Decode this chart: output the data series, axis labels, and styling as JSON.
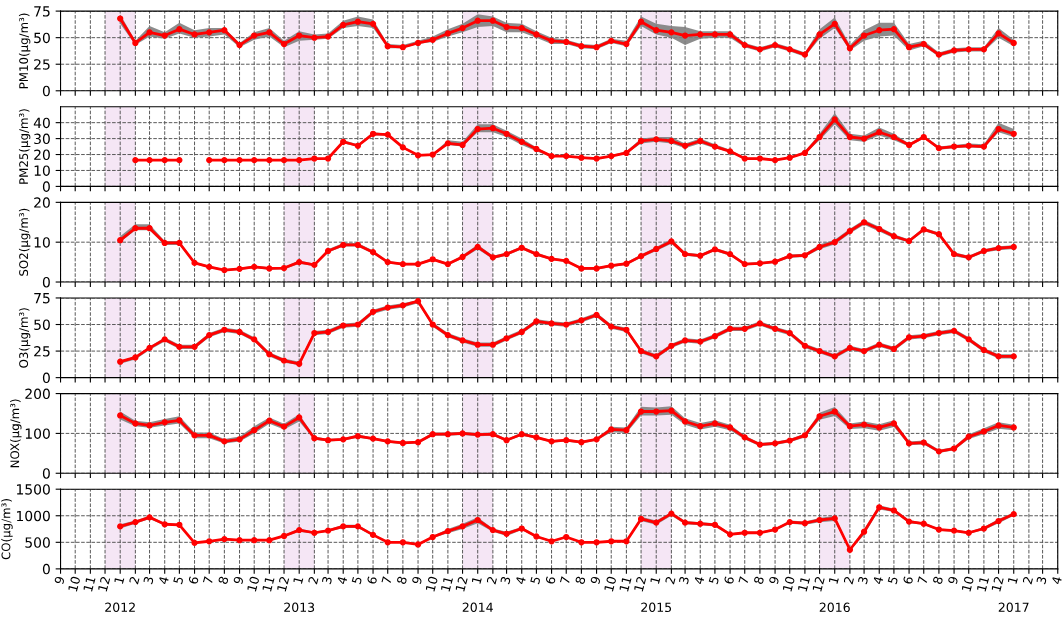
{
  "chart_data": [
    {
      "type": "line",
      "ylabel": "PM10(μg/m³)",
      "ylim": [
        0,
        75
      ],
      "yticks": [
        0,
        25,
        50,
        75
      ],
      "tick_labels": "y",
      "grid": true,
      "marker": "circle",
      "line_style": "solid",
      "xlim": [
        "2011-09",
        "2017-04"
      ],
      "x": [
        "2012-01",
        "2012-02",
        "2012-03",
        "2012-04",
        "2012-05",
        "2012-06",
        "2012-07",
        "2012-08",
        "2012-09",
        "2012-10",
        "2012-11",
        "2012-12",
        "2013-01",
        "2013-02",
        "2013-03",
        "2013-04",
        "2013-05",
        "2013-06",
        "2013-07",
        "2013-08",
        "2013-09",
        "2013-10",
        "2013-11",
        "2013-12",
        "2014-01",
        "2014-02",
        "2014-03",
        "2014-04",
        "2014-05",
        "2014-06",
        "2014-07",
        "2014-08",
        "2014-09",
        "2014-10",
        "2014-11",
        "2014-12",
        "2015-01",
        "2015-02",
        "2015-03",
        "2015-04",
        "2015-05",
        "2015-06",
        "2015-07",
        "2015-08",
        "2015-09",
        "2015-10",
        "2015-11",
        "2015-12",
        "2016-01",
        "2016-02",
        "2016-03",
        "2016-04",
        "2016-05",
        "2016-06",
        "2016-07",
        "2016-08",
        "2016-09",
        "2016-10",
        "2016-11",
        "2016-12",
        "2017-01"
      ],
      "bands": [
        {
          "axis": "x",
          "from": "2011-12",
          "to": "2012-02",
          "color": "#f5e6f5"
        },
        {
          "axis": "x",
          "from": "2012-12",
          "to": "2013-02",
          "color": "#f5e6f5"
        },
        {
          "axis": "x",
          "from": "2013-12",
          "to": "2014-02",
          "color": "#f5e6f5"
        },
        {
          "axis": "x",
          "from": "2014-12",
          "to": "2015-02",
          "color": "#f5e6f5"
        },
        {
          "axis": "x",
          "from": "2015-12",
          "to": "2016-02",
          "color": "#f5e6f5"
        }
      ],
      "series": [
        {
          "color": "#ff0000",
          "values": [
            68,
            45,
            55,
            52,
            58,
            53,
            55,
            57,
            43,
            52,
            55,
            44,
            52,
            50,
            51,
            62,
            65,
            63,
            42,
            41,
            45,
            48,
            54,
            59,
            66,
            66,
            60,
            59,
            53,
            47,
            46,
            42,
            41,
            47,
            44,
            65,
            57,
            55,
            52,
            53,
            53,
            53,
            43,
            39,
            43,
            39,
            34,
            53,
            63,
            40,
            52,
            57,
            58,
            41,
            44,
            34,
            38,
            39,
            39,
            54,
            45
          ],
          "lower": [
            63,
            43,
            51,
            49,
            54,
            50,
            51,
            53,
            41,
            48,
            51,
            41,
            47,
            48,
            49,
            59,
            61,
            59,
            40,
            40,
            44,
            46,
            51,
            55,
            60,
            61,
            55,
            55,
            50,
            44,
            44,
            40,
            39,
            45,
            42,
            61,
            53,
            50,
            43,
            49,
            50,
            50,
            41,
            37,
            41,
            37,
            32,
            49,
            59,
            38,
            47,
            51,
            52,
            38,
            42,
            32,
            36,
            37,
            37,
            50,
            42
          ],
          "upper": [
            72,
            47,
            61,
            55,
            64,
            57,
            59,
            59,
            45,
            55,
            59,
            47,
            56,
            53,
            54,
            66,
            70,
            67,
            44,
            43,
            47,
            51,
            58,
            63,
            72,
            70,
            64,
            63,
            56,
            50,
            48,
            44,
            43,
            49,
            47,
            70,
            63,
            61,
            60,
            56,
            56,
            56,
            45,
            41,
            45,
            41,
            36,
            58,
            69,
            43,
            57,
            64,
            64,
            44,
            47,
            36,
            40,
            41,
            41,
            59,
            48
          ]
        }
      ]
    },
    {
      "type": "line",
      "ylabel": "PM25(μg/m³)",
      "ylim": [
        0,
        50
      ],
      "yticks": [
        0,
        10,
        20,
        30,
        40
      ],
      "tick_labels": "y",
      "grid": true,
      "marker": "circle",
      "line_style": "solid",
      "xlim": [
        "2011-09",
        "2017-04"
      ],
      "bands": [
        {
          "axis": "x",
          "from": "2011-12",
          "to": "2012-02",
          "color": "#f5e6f5"
        },
        {
          "axis": "x",
          "from": "2012-12",
          "to": "2013-02",
          "color": "#f5e6f5"
        },
        {
          "axis": "x",
          "from": "2013-12",
          "to": "2014-02",
          "color": "#f5e6f5"
        },
        {
          "axis": "x",
          "from": "2014-12",
          "to": "2015-02",
          "color": "#f5e6f5"
        },
        {
          "axis": "x",
          "from": "2015-12",
          "to": "2016-02",
          "color": "#f5e6f5"
        }
      ],
      "series": [
        {
          "color": "#ff0000",
          "x": [
            "2012-02",
            "2012-03",
            "2012-04",
            "2012-05",
            "2012-06",
            "2012-07",
            "2012-08",
            "2012-09",
            "2012-10",
            "2012-11",
            "2012-12",
            "2013-01",
            "2013-02",
            "2013-03",
            "2013-04",
            "2013-05",
            "2013-06",
            "2013-07",
            "2013-08",
            "2013-09",
            "2013-10",
            "2013-11",
            "2013-12",
            "2014-01",
            "2014-02",
            "2014-03",
            "2014-04",
            "2014-05",
            "2014-06",
            "2014-07",
            "2014-08",
            "2014-09",
            "2014-10",
            "2014-11",
            "2014-12",
            "2015-01",
            "2015-02",
            "2015-03",
            "2015-04",
            "2015-05",
            "2015-06",
            "2015-07",
            "2015-08",
            "2015-09",
            "2015-10",
            "2015-11",
            "2015-12",
            "2016-01",
            "2016-02",
            "2016-03",
            "2016-04",
            "2016-05",
            "2016-06",
            "2016-07",
            "2016-08",
            "2016-09",
            "2016-10",
            "2016-11",
            "2016-12",
            "2017-01"
          ],
          "values": [
            16.5,
            16.5,
            16.5,
            16.5,
            null,
            16.5,
            16.5,
            16.5,
            16.5,
            16.5,
            16.5,
            16.5,
            17.5,
            17.5,
            28,
            25.5,
            33,
            32.5,
            24.5,
            19.5,
            20,
            27,
            26,
            36,
            36.5,
            33,
            28,
            23.5,
            19,
            19,
            18,
            17.5,
            19,
            21,
            28.5,
            29.5,
            28.5,
            25.5,
            28.5,
            25,
            22,
            17.5,
            17.5,
            16.5,
            18,
            21,
            31,
            42,
            31,
            30,
            34,
            31,
            26,
            31,
            24,
            25,
            25.5,
            25,
            36,
            33
          ],
          "lower": [
            null,
            null,
            null,
            null,
            null,
            null,
            null,
            null,
            null,
            null,
            null,
            null,
            null,
            17,
            27,
            25,
            32,
            32,
            24,
            19,
            19.5,
            26,
            25,
            34,
            34,
            31,
            26,
            22,
            18.5,
            18.5,
            17.5,
            17,
            18.5,
            20.5,
            27,
            28,
            27,
            24,
            27,
            24,
            21.5,
            17,
            17,
            16,
            17.5,
            20.5,
            29,
            39,
            29,
            28,
            32,
            29,
            25,
            30,
            23,
            24,
            24.5,
            24,
            34,
            31
          ],
          "upper": [
            null,
            null,
            null,
            null,
            null,
            null,
            null,
            null,
            null,
            null,
            null,
            null,
            null,
            18,
            29,
            26.5,
            34,
            33,
            25,
            20,
            20.5,
            29,
            28,
            39,
            39,
            35,
            30,
            24.5,
            19.5,
            19.5,
            18.5,
            18,
            19.5,
            22,
            30,
            31,
            31,
            27,
            30,
            26.5,
            23,
            18,
            18,
            17,
            18.5,
            22,
            33,
            46,
            33,
            32,
            37,
            33,
            27,
            32,
            25,
            26,
            27,
            26.5,
            40,
            36
          ]
        }
      ]
    },
    {
      "type": "line",
      "ylabel": "SO2(μg/m³)",
      "ylim": [
        0,
        20
      ],
      "yticks": [
        0,
        10,
        20
      ],
      "tick_labels": "y",
      "grid": true,
      "marker": "circle",
      "line_style": "solid",
      "xlim": [
        "2011-09",
        "2017-04"
      ],
      "x": [
        "2012-01",
        "2012-02",
        "2012-03",
        "2012-04",
        "2012-05",
        "2012-06",
        "2012-07",
        "2012-08",
        "2012-09",
        "2012-10",
        "2012-11",
        "2012-12",
        "2013-01",
        "2013-02",
        "2013-03",
        "2013-04",
        "2013-05",
        "2013-06",
        "2013-07",
        "2013-08",
        "2013-09",
        "2013-10",
        "2013-11",
        "2013-12",
        "2014-01",
        "2014-02",
        "2014-03",
        "2014-04",
        "2014-05",
        "2014-06",
        "2014-07",
        "2014-08",
        "2014-09",
        "2014-10",
        "2014-11",
        "2014-12",
        "2015-01",
        "2015-02",
        "2015-03",
        "2015-04",
        "2015-05",
        "2015-06",
        "2015-07",
        "2015-08",
        "2015-09",
        "2015-10",
        "2015-11",
        "2015-12",
        "2016-01",
        "2016-02",
        "2016-03",
        "2016-04",
        "2016-05",
        "2016-06",
        "2016-07",
        "2016-08",
        "2016-09",
        "2016-10",
        "2016-11",
        "2016-12",
        "2017-01"
      ],
      "bands": [
        {
          "axis": "x",
          "from": "2011-12",
          "to": "2012-02",
          "color": "#f5e6f5"
        },
        {
          "axis": "x",
          "from": "2012-12",
          "to": "2013-02",
          "color": "#f5e6f5"
        },
        {
          "axis": "x",
          "from": "2013-12",
          "to": "2014-02",
          "color": "#f5e6f5"
        },
        {
          "axis": "x",
          "from": "2014-12",
          "to": "2015-02",
          "color": "#f5e6f5"
        },
        {
          "axis": "x",
          "from": "2015-12",
          "to": "2016-02",
          "color": "#f5e6f5"
        }
      ],
      "series": [
        {
          "color": "#ff0000",
          "values": [
            10.5,
            13.5,
            13.5,
            9.8,
            9.8,
            4.8,
            3.8,
            3,
            3.3,
            3.8,
            3.4,
            3.5,
            5,
            4.3,
            7.8,
            9.3,
            9.3,
            7.5,
            5,
            4.5,
            4.5,
            5.7,
            4.5,
            6.3,
            8.8,
            6.2,
            7,
            8.6,
            7,
            5.8,
            5.3,
            3.4,
            3.4,
            4.1,
            4.6,
            6.5,
            8.3,
            10.2,
            7,
            6.6,
            8.2,
            7,
            4.5,
            4.7,
            5.1,
            6.5,
            6.7,
            8.8,
            10,
            12.8,
            15,
            13.3,
            11.5,
            10.3,
            13.2,
            12,
            7,
            6.2,
            7.8,
            8.5,
            8.8
          ],
          "lower": [
            10,
            13,
            13,
            9.3,
            9.3,
            4.5,
            3.5,
            2.8,
            3,
            3.5,
            3.1,
            3.2,
            4.6,
            4,
            7.4,
            8.9,
            8.9,
            7.1,
            4.7,
            4.2,
            4.2,
            5.4,
            4.2,
            5.9,
            8.2,
            5.8,
            6.6,
            8.2,
            6.6,
            5.5,
            5,
            3.1,
            3.1,
            3.8,
            4.3,
            6.1,
            7.8,
            9.6,
            6.6,
            6.2,
            7.8,
            6.6,
            4.2,
            4.4,
            4.8,
            6.1,
            6.3,
            8.2,
            9.4,
            12.2,
            14.4,
            12.7,
            11,
            9.9,
            12.8,
            11.6,
            6.5,
            5.8,
            7.4,
            8,
            8.3
          ],
          "upper": [
            11.5,
            14.5,
            14.5,
            10.3,
            10.3,
            5.1,
            4.1,
            3.2,
            3.6,
            4.1,
            3.7,
            3.8,
            5.4,
            4.6,
            8.2,
            9.8,
            9.8,
            7.9,
            5.3,
            4.8,
            4.8,
            6,
            4.8,
            6.7,
            9.4,
            6.6,
            7.4,
            9,
            7.4,
            6.1,
            5.6,
            3.7,
            3.7,
            4.4,
            4.9,
            6.9,
            8.8,
            10.8,
            7.4,
            7,
            8.6,
            7.4,
            4.8,
            5,
            5.4,
            6.9,
            7.1,
            9.4,
            10.6,
            13.4,
            15.6,
            13.9,
            12,
            10.7,
            13.6,
            12.4,
            7.5,
            6.6,
            8.2,
            9,
            9.2
          ]
        }
      ]
    },
    {
      "type": "line",
      "ylabel": "O3(μg/m³)",
      "ylim": [
        0,
        75
      ],
      "yticks": [
        0,
        25,
        50,
        75
      ],
      "tick_labels": "y",
      "grid": true,
      "marker": "circle",
      "line_style": "solid",
      "xlim": [
        "2011-09",
        "2017-04"
      ],
      "x": [
        "2012-01",
        "2012-02",
        "2012-03",
        "2012-04",
        "2012-05",
        "2012-06",
        "2012-07",
        "2012-08",
        "2012-09",
        "2012-10",
        "2012-11",
        "2012-12",
        "2013-01",
        "2013-02",
        "2013-03",
        "2013-04",
        "2013-05",
        "2013-06",
        "2013-07",
        "2013-08",
        "2013-09",
        "2013-10",
        "2013-11",
        "2013-12",
        "2014-01",
        "2014-02",
        "2014-03",
        "2014-04",
        "2014-05",
        "2014-06",
        "2014-07",
        "2014-08",
        "2014-09",
        "2014-10",
        "2014-11",
        "2014-12",
        "2015-01",
        "2015-02",
        "2015-03",
        "2015-04",
        "2015-05",
        "2015-06",
        "2015-07",
        "2015-08",
        "2015-09",
        "2015-10",
        "2015-11",
        "2015-12",
        "2016-01",
        "2016-02",
        "2016-03",
        "2016-04",
        "2016-05",
        "2016-06",
        "2016-07",
        "2016-08",
        "2016-09",
        "2016-10",
        "2016-11",
        "2016-12",
        "2017-01"
      ],
      "bands": [
        {
          "axis": "x",
          "from": "2011-12",
          "to": "2012-02",
          "color": "#f5e6f5"
        },
        {
          "axis": "x",
          "from": "2012-12",
          "to": "2013-02",
          "color": "#f5e6f5"
        },
        {
          "axis": "x",
          "from": "2013-12",
          "to": "2014-02",
          "color": "#f5e6f5"
        },
        {
          "axis": "x",
          "from": "2014-12",
          "to": "2015-02",
          "color": "#f5e6f5"
        },
        {
          "axis": "x",
          "from": "2015-12",
          "to": "2016-02",
          "color": "#f5e6f5"
        }
      ],
      "series": [
        {
          "color": "#ff0000",
          "values": [
            15,
            19,
            28,
            36,
            29,
            29,
            40,
            45,
            43,
            36,
            22,
            16,
            13,
            42,
            43,
            49,
            50,
            62,
            66,
            68,
            72,
            50,
            40,
            35,
            31,
            31,
            37,
            43,
            53,
            51,
            50,
            54,
            59,
            48,
            45,
            25,
            20,
            30,
            35,
            34,
            39,
            46,
            46,
            51,
            46,
            42,
            30,
            25,
            20,
            28,
            25,
            31,
            27,
            38,
            39,
            42,
            44,
            36,
            26,
            20,
            20
          ],
          "lower": [
            13,
            17,
            26,
            34,
            27,
            27,
            38,
            43,
            41,
            34,
            20,
            14,
            12,
            40,
            41,
            47,
            48,
            60,
            64,
            66,
            70,
            48,
            38,
            33,
            29,
            29,
            35,
            41,
            51,
            49,
            48,
            52,
            57,
            46,
            43,
            23,
            18,
            28,
            33,
            32,
            37,
            44,
            44,
            49,
            44,
            40,
            28,
            23,
            18,
            26,
            23,
            29,
            25,
            36,
            37,
            40,
            42,
            34,
            24,
            18,
            18
          ],
          "upper": [
            16,
            20,
            29,
            38,
            31,
            31,
            42,
            47,
            45,
            38,
            24,
            18,
            15,
            44,
            45,
            51,
            52,
            64,
            68,
            70,
            73,
            52,
            42,
            37,
            33,
            33,
            39,
            45,
            55,
            53,
            52,
            56,
            61,
            50,
            47,
            27,
            22,
            32,
            37,
            36,
            41,
            48,
            48,
            53,
            48,
            44,
            32,
            27,
            22,
            30,
            27,
            33,
            29,
            40,
            41,
            44,
            46,
            38,
            28,
            22,
            22
          ]
        }
      ]
    },
    {
      "type": "line",
      "ylabel": "NOX(μg/m³)",
      "ylim": [
        0,
        200
      ],
      "yticks": [
        0,
        100,
        200
      ],
      "tick_labels": "y",
      "grid": true,
      "marker": "circle",
      "line_style": "solid",
      "xlim": [
        "2011-09",
        "2017-04"
      ],
      "x": [
        "2012-01",
        "2012-02",
        "2012-03",
        "2012-04",
        "2012-05",
        "2012-06",
        "2012-07",
        "2012-08",
        "2012-09",
        "2012-10",
        "2012-11",
        "2012-12",
        "2013-01",
        "2013-02",
        "2013-03",
        "2013-04",
        "2013-05",
        "2013-06",
        "2013-07",
        "2013-08",
        "2013-09",
        "2013-10",
        "2013-11",
        "2013-12",
        "2014-01",
        "2014-02",
        "2014-03",
        "2014-04",
        "2014-05",
        "2014-06",
        "2014-07",
        "2014-08",
        "2014-09",
        "2014-10",
        "2014-11",
        "2014-12",
        "2015-01",
        "2015-02",
        "2015-03",
        "2015-04",
        "2015-05",
        "2015-06",
        "2015-07",
        "2015-08",
        "2015-09",
        "2015-10",
        "2015-11",
        "2015-12",
        "2016-01",
        "2016-02",
        "2016-03",
        "2016-04",
        "2016-05",
        "2016-06",
        "2016-07",
        "2016-08",
        "2016-09",
        "2016-10",
        "2016-11",
        "2016-12",
        "2017-01"
      ],
      "bands": [
        {
          "axis": "x",
          "from": "2011-12",
          "to": "2012-02",
          "color": "#f5e6f5"
        },
        {
          "axis": "x",
          "from": "2012-12",
          "to": "2013-02",
          "color": "#f5e6f5"
        },
        {
          "axis": "x",
          "from": "2013-12",
          "to": "2014-02",
          "color": "#f5e6f5"
        },
        {
          "axis": "x",
          "from": "2014-12",
          "to": "2015-02",
          "color": "#f5e6f5"
        },
        {
          "axis": "x",
          "from": "2015-12",
          "to": "2016-02",
          "color": "#f5e6f5"
        }
      ],
      "series": [
        {
          "color": "#ff0000",
          "values": [
            145,
            125,
            120,
            128,
            133,
            95,
            95,
            80,
            85,
            108,
            132,
            117,
            140,
            88,
            83,
            85,
            93,
            87,
            80,
            76,
            78,
            98,
            98,
            100,
            97,
            98,
            83,
            98,
            90,
            80,
            83,
            78,
            85,
            110,
            108,
            155,
            155,
            157,
            130,
            118,
            125,
            115,
            90,
            72,
            75,
            82,
            95,
            143,
            155,
            118,
            122,
            115,
            125,
            75,
            77,
            55,
            62,
            92,
            105,
            120,
            115
          ],
          "lower": [
            135,
            118,
            114,
            120,
            125,
            88,
            88,
            75,
            80,
            100,
            124,
            110,
            130,
            84,
            80,
            82,
            89,
            84,
            77,
            73,
            75,
            94,
            94,
            96,
            93,
            94,
            80,
            94,
            87,
            77,
            80,
            75,
            82,
            103,
            101,
            145,
            145,
            147,
            122,
            110,
            117,
            108,
            85,
            68,
            71,
            78,
            90,
            134,
            144,
            111,
            113,
            107,
            116,
            70,
            72,
            51,
            58,
            86,
            98,
            112,
            108
          ],
          "upper": [
            155,
            132,
            128,
            136,
            143,
            102,
            102,
            86,
            92,
            118,
            140,
            124,
            148,
            92,
            86,
            88,
            97,
            90,
            83,
            79,
            81,
            102,
            102,
            104,
            101,
            102,
            86,
            102,
            93,
            83,
            86,
            81,
            88,
            117,
            115,
            167,
            165,
            168,
            138,
            126,
            133,
            122,
            95,
            76,
            79,
            86,
            100,
            152,
            166,
            125,
            130,
            123,
            133,
            80,
            82,
            59,
            66,
            98,
            113,
            128,
            122
          ]
        }
      ]
    },
    {
      "type": "line",
      "ylabel": "CO(μg/m³)",
      "ylim": [
        0,
        1500
      ],
      "yticks": [
        0,
        500,
        1000,
        1500
      ],
      "grid": true,
      "marker": "circle",
      "line_style": "solid",
      "xlim": [
        "2011-09",
        "2017-04"
      ],
      "xticks": [
        {
          "value": "2011-09",
          "label": "9"
        },
        {
          "value": "2011-10",
          "label": "10"
        },
        {
          "value": "2011-11",
          "label": "11"
        },
        {
          "value": "2011-12",
          "label": "12"
        },
        {
          "value": "2012-01",
          "label": "1"
        },
        {
          "value": "2012-02",
          "label": "2"
        },
        {
          "value": "2012-03",
          "label": "3"
        },
        {
          "value": "2012-04",
          "label": "4"
        },
        {
          "value": "2012-05",
          "label": "5"
        },
        {
          "value": "2012-06",
          "label": "6"
        },
        {
          "value": "2012-07",
          "label": "7"
        },
        {
          "value": "2012-08",
          "label": "8"
        },
        {
          "value": "2012-09",
          "label": "9"
        },
        {
          "value": "2012-10",
          "label": "10"
        },
        {
          "value": "2012-11",
          "label": "11"
        },
        {
          "value": "2012-12",
          "label": "12"
        },
        {
          "value": "2013-01",
          "label": "1"
        },
        {
          "value": "2013-02",
          "label": "2"
        },
        {
          "value": "2013-03",
          "label": "3"
        },
        {
          "value": "2013-04",
          "label": "4"
        },
        {
          "value": "2013-05",
          "label": "5"
        },
        {
          "value": "2013-06",
          "label": "6"
        },
        {
          "value": "2013-07",
          "label": "7"
        },
        {
          "value": "2013-08",
          "label": "8"
        },
        {
          "value": "2013-09",
          "label": "9"
        },
        {
          "value": "2013-10",
          "label": "10"
        },
        {
          "value": "2013-11",
          "label": "11"
        },
        {
          "value": "2013-12",
          "label": "12"
        },
        {
          "value": "2014-01",
          "label": "1"
        },
        {
          "value": "2014-02",
          "label": "2"
        },
        {
          "value": "2014-03",
          "label": "3"
        },
        {
          "value": "2014-04",
          "label": "4"
        },
        {
          "value": "2014-05",
          "label": "5"
        },
        {
          "value": "2014-06",
          "label": "6"
        },
        {
          "value": "2014-07",
          "label": "7"
        },
        {
          "value": "2014-08",
          "label": "8"
        },
        {
          "value": "2014-09",
          "label": "9"
        },
        {
          "value": "2014-10",
          "label": "10"
        },
        {
          "value": "2014-11",
          "label": "11"
        },
        {
          "value": "2014-12",
          "label": "12"
        },
        {
          "value": "2015-01",
          "label": "1"
        },
        {
          "value": "2015-02",
          "label": "2"
        },
        {
          "value": "2015-03",
          "label": "3"
        },
        {
          "value": "2015-04",
          "label": "4"
        },
        {
          "value": "2015-05",
          "label": "5"
        },
        {
          "value": "2015-06",
          "label": "6"
        },
        {
          "value": "2015-07",
          "label": "7"
        },
        {
          "value": "2015-08",
          "label": "8"
        },
        {
          "value": "2015-09",
          "label": "9"
        },
        {
          "value": "2015-10",
          "label": "10"
        },
        {
          "value": "2015-11",
          "label": "11"
        },
        {
          "value": "2015-12",
          "label": "12"
        },
        {
          "value": "2016-01",
          "label": "1"
        },
        {
          "value": "2016-02",
          "label": "2"
        },
        {
          "value": "2016-03",
          "label": "3"
        },
        {
          "value": "2016-04",
          "label": "4"
        },
        {
          "value": "2016-05",
          "label": "5"
        },
        {
          "value": "2016-06",
          "label": "6"
        },
        {
          "value": "2016-07",
          "label": "7"
        },
        {
          "value": "2016-08",
          "label": "8"
        },
        {
          "value": "2016-09",
          "label": "9"
        },
        {
          "value": "2016-10",
          "label": "10"
        },
        {
          "value": "2016-11",
          "label": "11"
        },
        {
          "value": "2016-12",
          "label": "12"
        },
        {
          "value": "2017-01",
          "label": "1"
        },
        {
          "value": "2017-02",
          "label": "2"
        },
        {
          "value": "2017-03",
          "label": "3"
        },
        {
          "value": "2017-04",
          "label": "4"
        }
      ],
      "annotations": [
        "2012",
        "2013",
        "2014",
        "2015",
        "2016",
        "2017"
      ],
      "x": [
        "2012-01",
        "2012-02",
        "2012-03",
        "2012-04",
        "2012-05",
        "2012-06",
        "2012-07",
        "2012-08",
        "2012-09",
        "2012-10",
        "2012-11",
        "2012-12",
        "2013-01",
        "2013-02",
        "2013-03",
        "2013-04",
        "2013-05",
        "2013-06",
        "2013-07",
        "2013-08",
        "2013-09",
        "2013-10",
        "2013-11",
        "2013-12",
        "2014-01",
        "2014-02",
        "2014-03",
        "2014-04",
        "2014-05",
        "2014-06",
        "2014-07",
        "2014-08",
        "2014-09",
        "2014-10",
        "2014-11",
        "2014-12",
        "2015-01",
        "2015-02",
        "2015-03",
        "2015-04",
        "2015-05",
        "2015-06",
        "2015-07",
        "2015-08",
        "2015-09",
        "2015-10",
        "2015-11",
        "2015-12",
        "2016-01",
        "2016-02",
        "2016-03",
        "2016-04",
        "2016-05",
        "2016-06",
        "2016-07",
        "2016-08",
        "2016-09",
        "2016-10",
        "2016-11",
        "2016-12",
        "2017-01"
      ],
      "bands": [
        {
          "axis": "x",
          "from": "2011-12",
          "to": "2012-02",
          "color": "#f5e6f5"
        },
        {
          "axis": "x",
          "from": "2012-12",
          "to": "2013-02",
          "color": "#f5e6f5"
        },
        {
          "axis": "x",
          "from": "2013-12",
          "to": "2014-02",
          "color": "#f5e6f5"
        },
        {
          "axis": "x",
          "from": "2014-12",
          "to": "2015-02",
          "color": "#f5e6f5"
        },
        {
          "axis": "x",
          "from": "2015-12",
          "to": "2016-02",
          "color": "#f5e6f5"
        }
      ],
      "series": [
        {
          "color": "#ff0000",
          "values": [
            800,
            880,
            970,
            840,
            830,
            490,
            520,
            560,
            540,
            540,
            540,
            620,
            730,
            680,
            720,
            800,
            800,
            640,
            500,
            500,
            460,
            600,
            710,
            800,
            920,
            730,
            660,
            760,
            610,
            520,
            600,
            500,
            500,
            520,
            520,
            940,
            870,
            1040,
            870,
            850,
            830,
            650,
            680,
            680,
            740,
            880,
            860,
            920,
            950,
            360,
            700,
            1160,
            1100,
            890,
            850,
            740,
            720,
            680,
            760,
            900,
            1030
          ],
          "lower": [
            760,
            850,
            940,
            820,
            810,
            480,
            505,
            545,
            525,
            525,
            525,
            600,
            700,
            660,
            700,
            770,
            770,
            620,
            490,
            490,
            450,
            580,
            670,
            750,
            860,
            700,
            620,
            730,
            590,
            505,
            585,
            490,
            490,
            505,
            505,
            900,
            830,
            1000,
            840,
            820,
            800,
            630,
            660,
            660,
            720,
            850,
            830,
            880,
            900,
            340,
            640,
            1120,
            1070,
            860,
            830,
            720,
            700,
            660,
            730,
            860,
            1000
          ],
          "upper": [
            840,
            910,
            1000,
            860,
            850,
            500,
            535,
            575,
            555,
            555,
            555,
            640,
            760,
            700,
            740,
            830,
            830,
            660,
            510,
            510,
            470,
            620,
            750,
            850,
            970,
            760,
            700,
            790,
            630,
            535,
            615,
            510,
            510,
            535,
            535,
            980,
            910,
            1070,
            900,
            880,
            860,
            670,
            700,
            700,
            760,
            910,
            890,
            960,
            1000,
            380,
            740,
            1200,
            1130,
            920,
            870,
            760,
            740,
            700,
            790,
            940,
            1060
          ]
        }
      ]
    }
  ]
}
